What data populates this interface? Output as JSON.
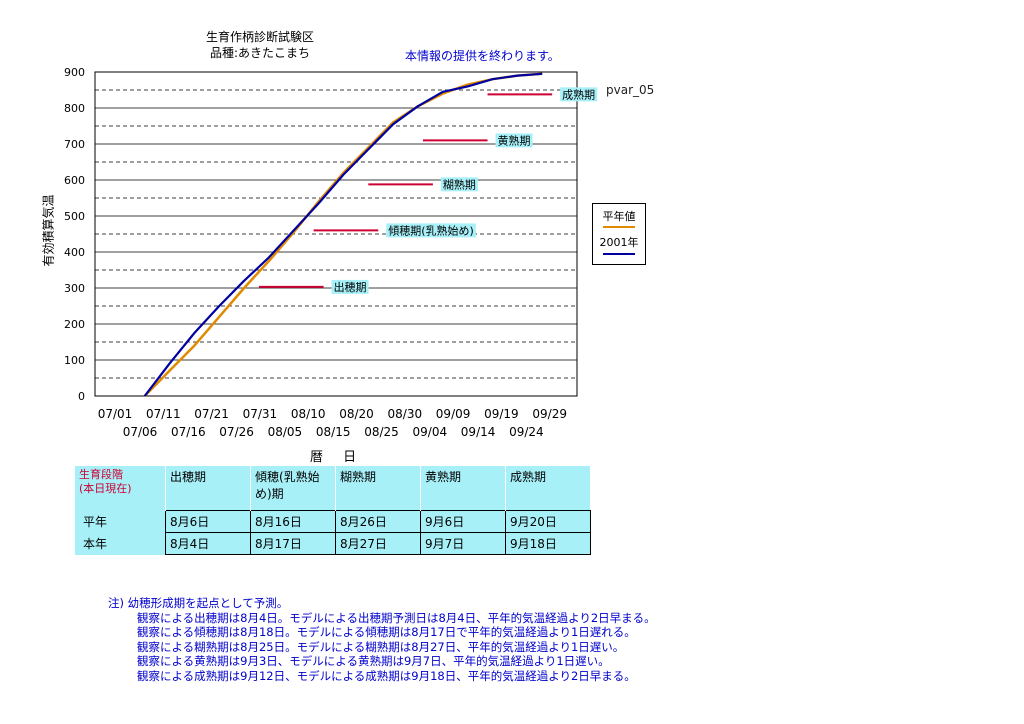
{
  "header": {
    "title_line1": "生育作柄診断試験区",
    "title_line2": "品種:あきたこまち",
    "notice": "本情報の提供を終わります。",
    "pvar": "pvar_05"
  },
  "colors": {
    "normal_year": "#e08a00",
    "this_year": "#0000a0",
    "stage_marker": "#cc0033",
    "table_bg": "#a8f0f8",
    "note_text": "#0000cc"
  },
  "chart_data": {
    "type": "line",
    "ylabel": "有効積算気温",
    "xlabel": "暦 日",
    "ylim": [
      0,
      900
    ],
    "yticks": [
      0,
      100,
      200,
      300,
      400,
      500,
      600,
      700,
      800,
      900
    ],
    "x_ticks_row1": [
      "07/01",
      "07/11",
      "07/21",
      "07/31",
      "08/10",
      "08/20",
      "08/30",
      "09/09",
      "09/19",
      "09/29"
    ],
    "x_ticks_row2": [
      "07/06",
      "07/16",
      "07/26",
      "08/05",
      "08/15",
      "08/25",
      "09/04",
      "09/14",
      "09/24"
    ],
    "x_range_days": [
      0,
      97
    ],
    "legend": [
      "平年値",
      "2001年"
    ],
    "series": [
      {
        "name": "平年値",
        "color": "#e08a00",
        "x": [
          10,
          15,
          20,
          25,
          30,
          35,
          40,
          45,
          50,
          55,
          60,
          65,
          70,
          75,
          80,
          85,
          90
        ],
        "y": [
          0,
          70,
          140,
          220,
          300,
          375,
          455,
          540,
          620,
          690,
          760,
          805,
          840,
          865,
          880,
          890,
          895
        ]
      },
      {
        "name": "2001年",
        "color": "#0000a0",
        "x": [
          10,
          15,
          20,
          25,
          30,
          35,
          40,
          45,
          50,
          55,
          60,
          65,
          70,
          75,
          80,
          85,
          90
        ],
        "y": [
          0,
          90,
          175,
          250,
          320,
          385,
          460,
          535,
          615,
          685,
          755,
          805,
          845,
          860,
          880,
          890,
          895
        ]
      }
    ],
    "stage_markers": [
      {
        "label": "出穂期",
        "y": 303,
        "x_start": 33,
        "x_end": 46
      },
      {
        "label": "傾穂期(乳熟始め)",
        "y": 460,
        "x_start": 44,
        "x_end": 57
      },
      {
        "label": "糊熟期",
        "y": 588,
        "x_start": 55,
        "x_end": 68
      },
      {
        "label": "黄熟期",
        "y": 710,
        "x_start": 66,
        "x_end": 79
      },
      {
        "label": "成熟期",
        "y": 838,
        "x_start": 79,
        "x_end": 92
      }
    ]
  },
  "table": {
    "header_label_line1": "生育段階",
    "header_label_line2": "(本日現在)",
    "columns": [
      "出穂期",
      "傾穂(乳熟始め)期",
      "糊熟期",
      "黄熟期",
      "成熟期"
    ],
    "rows": [
      {
        "label": "平年",
        "values": [
          "8月6日",
          "8月16日",
          "8月26日",
          "9月6日",
          "9月20日"
        ]
      },
      {
        "label": "本年",
        "values": [
          "8月4日",
          "8月17日",
          "8月27日",
          "9月7日",
          "9月18日"
        ]
      }
    ]
  },
  "notes": [
    "注) 幼穂形成期を起点として予測。",
    "観察による出穂期は8月4日。モデルによる出穂期予測日は8月4日、平年的気温経過より2日早まる。",
    "観察による傾穂期は8月18日。モデルによる傾穂期は8月17日で平年的気温経過より1日遅れる。",
    "観察による糊熟期は8月25日。モデルによる糊熟期は8月27日、平年的気温経過より1日遅い。",
    "観察による黄熟期は9月3日、モデルによる黄熟期は9月7日、平年的気温経過より1日遅い。",
    "観察による成熟期は9月12日、モデルによる成熟期は9月18日、平年的気温経過より2日早まる。"
  ]
}
